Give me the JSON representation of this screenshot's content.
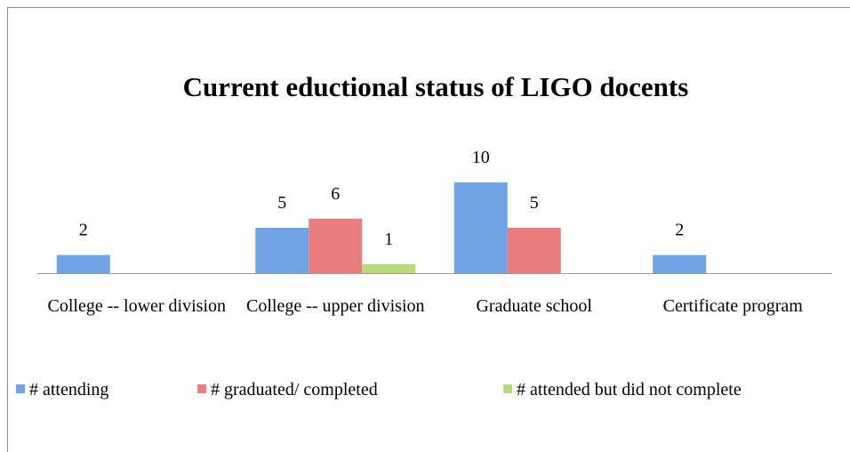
{
  "chart_data": {
    "type": "bar",
    "title": "Current eductional status of LIGO docents",
    "categories": [
      "College -- lower division",
      "College -- upper division",
      "Graduate school",
      "Certificate program"
    ],
    "series": [
      {
        "name": "# attending",
        "color": "#6fa3e3",
        "values": [
          2,
          5,
          10,
          2
        ]
      },
      {
        "name": "# graduated/ completed",
        "color": "#ea7d7d",
        "values": [
          null,
          6,
          5,
          null
        ]
      },
      {
        "name": "# attended but did not  complete",
        "color": "#b5dc78",
        "values": [
          null,
          1,
          null,
          null
        ]
      }
    ],
    "legend": "bottom"
  }
}
